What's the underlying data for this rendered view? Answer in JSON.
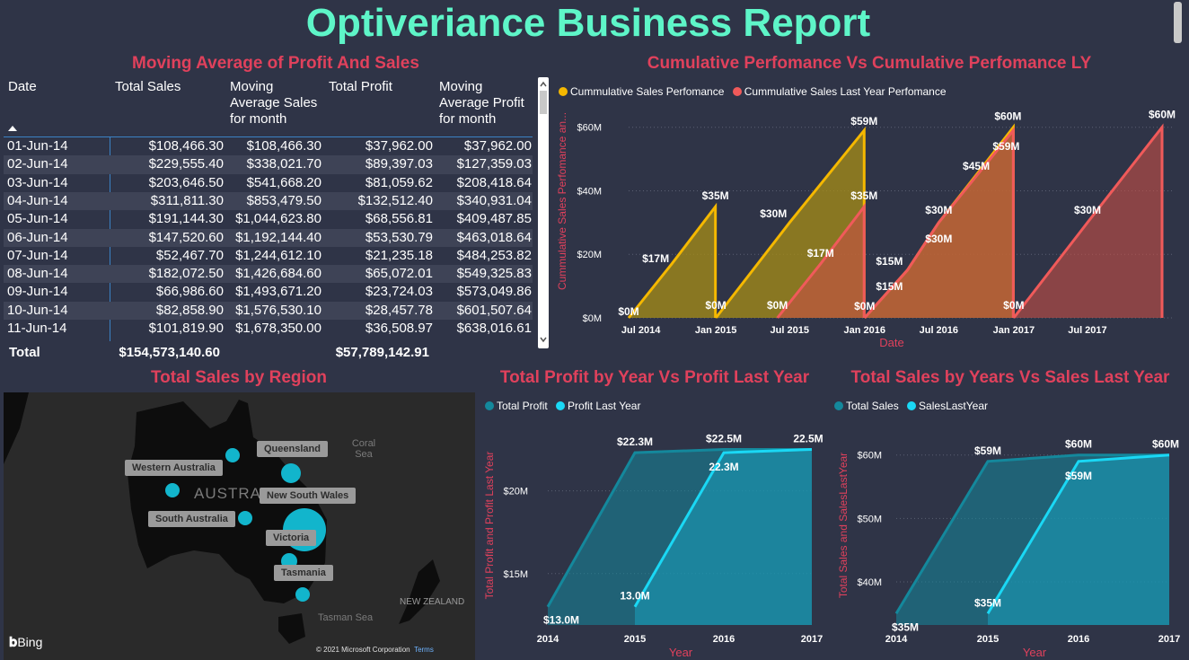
{
  "title": "Optiveriance Business Report",
  "table": {
    "title": "Moving Average of Profit And Sales",
    "headers": [
      "Date",
      "Total Sales",
      "Moving Average Sales for month",
      "Total Profit",
      "Moving Average Profit for month"
    ],
    "rows": [
      [
        "01-Jun-14",
        "$108,466.30",
        "$108,466.30",
        "$37,962.00",
        "$37,962.00"
      ],
      [
        "02-Jun-14",
        "$229,555.40",
        "$338,021.70",
        "$89,397.03",
        "$127,359.03"
      ],
      [
        "03-Jun-14",
        "$203,646.50",
        "$541,668.20",
        "$81,059.62",
        "$208,418.64"
      ],
      [
        "04-Jun-14",
        "$311,811.30",
        "$853,479.50",
        "$132,512.40",
        "$340,931.04"
      ],
      [
        "05-Jun-14",
        "$191,144.30",
        "$1,044,623.80",
        "$68,556.81",
        "$409,487.85"
      ],
      [
        "06-Jun-14",
        "$147,520.60",
        "$1,192,144.40",
        "$53,530.79",
        "$463,018.64"
      ],
      [
        "07-Jun-14",
        "$52,467.70",
        "$1,244,612.10",
        "$21,235.18",
        "$484,253.82"
      ],
      [
        "08-Jun-14",
        "$182,072.50",
        "$1,426,684.60",
        "$65,072.01",
        "$549,325.83"
      ],
      [
        "09-Jun-14",
        "$66,986.60",
        "$1,493,671.20",
        "$23,724.03",
        "$573,049.86"
      ],
      [
        "10-Jun-14",
        "$82,858.90",
        "$1,576,530.10",
        "$28,457.78",
        "$601,507.64"
      ],
      [
        "11-Jun-14",
        "$101,819.90",
        "$1,678,350.00",
        "$36,508.97",
        "$638,016.61"
      ]
    ],
    "total_label": "Total",
    "total_sales": "$154,573,140.60",
    "total_profit": "$57,789,142.91"
  },
  "map": {
    "title": "Total Sales by Region",
    "country_label": "AUSTRALIA",
    "regions": [
      "Western Australia",
      "Queensland",
      "New South Wales",
      "South Australia",
      "Victoria",
      "Tasmania"
    ],
    "sea_labels": [
      "Coral Sea",
      "Tasman Sea",
      "NEW ZEALAND"
    ],
    "bing": "Bing",
    "copyright": "© 2021 Microsoft Corporation",
    "terms": "Terms"
  },
  "colors": {
    "title": "#5ef5c8",
    "panel_title": "#e0415c",
    "sales": "#f5b800",
    "sales_ly": "#f05a5a",
    "profit": "#14889c",
    "profit_ly": "#1ad8f5",
    "background": "#2f3447"
  },
  "chart_data": [
    {
      "type": "area",
      "title": "Cumulative Perfomance Vs Cumulative Perfomance LY",
      "xlabel": "Date",
      "ylabel": "Cummulative Sales Perfomance an...",
      "x_ticks": [
        "Jul 2014",
        "Jan 2015",
        "Jul 2015",
        "Jan 2016",
        "Jul 2016",
        "Jan 2017",
        "Jul 2017"
      ],
      "y_ticks": [
        "$0M",
        "$20M",
        "$40M",
        "$60M"
      ],
      "ylim": [
        0,
        65
      ],
      "legend_position": "top-left",
      "series": [
        {
          "name": "Cummulative Sales Perfomance",
          "points": [
            [
              "2014-06-01",
              0
            ],
            [
              "2014-09-15",
              17
            ],
            [
              "2014-12-31",
              35
            ],
            [
              "2015-01-01",
              0
            ],
            [
              "2015-07-01",
              30
            ],
            [
              "2015-12-31",
              59
            ],
            [
              "2016-01-01",
              0
            ],
            [
              "2016-04-15",
              15
            ],
            [
              "2016-07-01",
              30
            ],
            [
              "2016-10-01",
              45
            ],
            [
              "2016-12-31",
              60
            ]
          ]
        },
        {
          "name": "Cummulative Sales Last Year Perfomance",
          "points": [
            [
              "2015-06-01",
              0
            ],
            [
              "2015-09-15",
              17
            ],
            [
              "2015-12-31",
              35
            ],
            [
              "2016-01-01",
              0
            ],
            [
              "2016-04-15",
              15
            ],
            [
              "2016-07-01",
              30
            ],
            [
              "2016-12-31",
              59
            ],
            [
              "2017-01-01",
              0
            ],
            [
              "2017-07-01",
              30
            ],
            [
              "2017-12-31",
              60
            ]
          ]
        }
      ],
      "data_labels": [
        {
          "x": "2014-06-01",
          "y": 0,
          "text": "$0M"
        },
        {
          "x": "2014-09-15",
          "y": 17,
          "text": "$17M"
        },
        {
          "x": "2014-12-31",
          "y": 35,
          "text": "$35M"
        },
        {
          "x": "2015-01-01",
          "y": 0,
          "text": "$0M"
        },
        {
          "x": "2015-06-01",
          "y": 0,
          "text": "$0M"
        },
        {
          "x": "2015-07-01",
          "y": 30,
          "text": "$30M"
        },
        {
          "x": "2015-09-15",
          "y": 17,
          "text": "$17M"
        },
        {
          "x": "2015-12-31",
          "y": 59,
          "text": "$59M"
        },
        {
          "x": "2015-12-31",
          "y": 35,
          "text": "$35M"
        },
        {
          "x": "2016-01-01",
          "y": 0,
          "text": "$0M"
        },
        {
          "x": "2016-04-15",
          "y": 15,
          "text": "$15M"
        },
        {
          "x": "2016-04-15",
          "y": 15,
          "text": "$15M"
        },
        {
          "x": "2016-07-01",
          "y": 30,
          "text": "$30M"
        },
        {
          "x": "2016-07-01",
          "y": 30,
          "text": "$30M"
        },
        {
          "x": "2016-10-01",
          "y": 45,
          "text": "$45M"
        },
        {
          "x": "2016-12-31",
          "y": 60,
          "text": "$60M"
        },
        {
          "x": "2016-12-31",
          "y": 59,
          "text": "$59M"
        },
        {
          "x": "2017-01-01",
          "y": 0,
          "text": "$0M"
        },
        {
          "x": "2017-07-01",
          "y": 30,
          "text": "$30M"
        },
        {
          "x": "2017-12-31",
          "y": 60,
          "text": "$60M"
        }
      ]
    },
    {
      "type": "area",
      "title": "Total Profit by Year Vs Profit Last Year",
      "xlabel": "Year",
      "ylabel": "Total Profit and Profit Last Year",
      "categories": [
        "2014",
        "2015",
        "2016",
        "2017"
      ],
      "y_ticks": [
        "$15M",
        "$20M"
      ],
      "ylim": [
        11.9,
        23.5
      ],
      "legend_position": "top-left",
      "series": [
        {
          "name": "Total Profit",
          "values": [
            13.0,
            22.3,
            22.5,
            22.5
          ],
          "labels": [
            "$13.0M",
            "$22.3M",
            "$22.5M",
            "22.5M"
          ]
        },
        {
          "name": "Profit Last Year",
          "values": [
            null,
            13.0,
            22.3,
            22.5
          ],
          "labels": [
            "",
            "13.0M",
            "22.3M",
            ""
          ]
        }
      ]
    },
    {
      "type": "area",
      "title": "Total Sales by Years Vs Sales Last Year",
      "xlabel": "Year",
      "ylabel": "Total Sales and SalesLastYear",
      "categories": [
        "2014",
        "2015",
        "2016",
        "2017"
      ],
      "y_ticks": [
        "$40M",
        "$50M",
        "$60M"
      ],
      "ylim": [
        33.2,
        63.5
      ],
      "legend_position": "top-left",
      "series": [
        {
          "name": "Total Sales",
          "values": [
            35,
            59,
            60,
            60
          ],
          "labels": [
            "$35M",
            "$59M",
            "$60M",
            "$60M"
          ]
        },
        {
          "name": "SalesLastYear",
          "values": [
            null,
            35,
            59,
            60
          ],
          "labels": [
            "",
            "$35M",
            "$59M",
            ""
          ]
        }
      ]
    }
  ]
}
